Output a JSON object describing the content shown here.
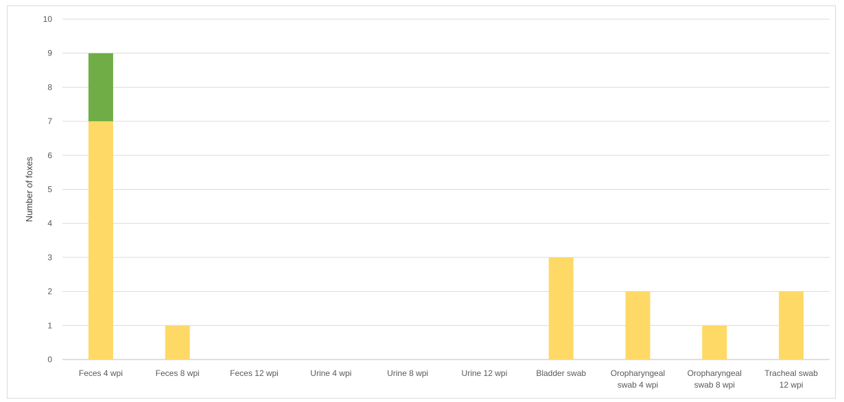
{
  "chart_data": {
    "type": "bar",
    "stacked": true,
    "title": "",
    "xlabel": "",
    "ylabel": "Number of foxes",
    "ylim": [
      0,
      10
    ],
    "y_ticks": [
      "0",
      "1",
      "2",
      "3",
      "4",
      "5",
      "6",
      "7",
      "8",
      "9",
      "10"
    ],
    "grid": true,
    "legend": "none",
    "categories": [
      [
        "Feces 4 wpi"
      ],
      [
        "Feces 8 wpi"
      ],
      [
        "Feces 12 wpi"
      ],
      [
        "Urine 4 wpi"
      ],
      [
        "Urine 8 wpi"
      ],
      [
        "Urine 12 wpi"
      ],
      [
        "Bladder swab"
      ],
      [
        "Oropharyngeal",
        "swab 4 wpi"
      ],
      [
        "Oropharyngeal",
        "swab 8 wpi"
      ],
      [
        "Tracheal swab",
        "12 wpi"
      ]
    ],
    "series": [
      {
        "color": "#FFD966",
        "values": [
          7,
          1,
          0,
          0,
          0,
          0,
          3,
          2,
          1,
          2
        ]
      },
      {
        "color": "#70AD47",
        "values": [
          2,
          0,
          0,
          0,
          0,
          0,
          0,
          0,
          0,
          0
        ]
      }
    ],
    "colors": {
      "grid": "#d9d9d9",
      "axis": "#bfbfbf",
      "text": "#595959"
    }
  }
}
